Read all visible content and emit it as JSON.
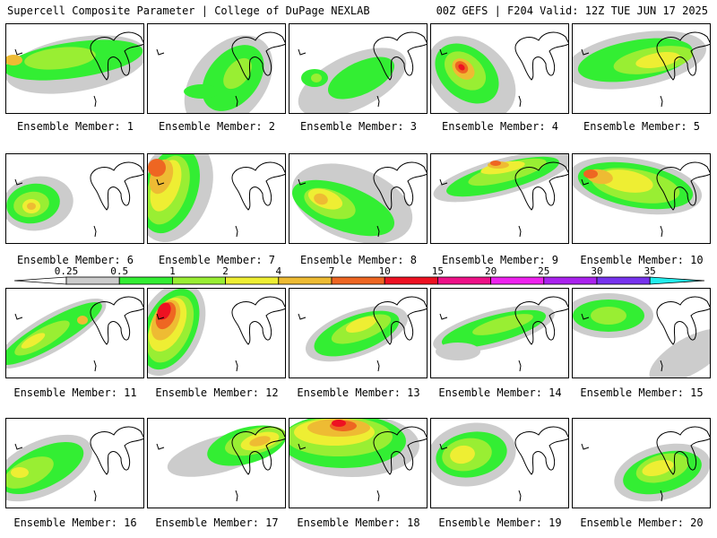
{
  "header": {
    "left": "Supercell Composite Parameter | College of DuPage NEXLAB",
    "right": "00Z GEFS | F204 Valid: 12Z TUE JUN 17 2025"
  },
  "legend": {
    "thresholds": [
      "0.25",
      "0.5",
      "1",
      "2",
      "4",
      "7",
      "10",
      "15",
      "20",
      "25",
      "30",
      "35"
    ],
    "colors": [
      "#cccccc",
      "#33ee33",
      "#99ee33",
      "#eeee33",
      "#eebb33",
      "#ee6622",
      "#ee1122",
      "#ee1188",
      "#ee22ee",
      "#aa22ee",
      "#7733ee",
      "#aa66ee",
      "#22eeee"
    ]
  },
  "members": [
    {
      "label": "Ensemble Member: 1"
    },
    {
      "label": "Ensemble Member: 2"
    },
    {
      "label": "Ensemble Member: 3"
    },
    {
      "label": "Ensemble Member: 4"
    },
    {
      "label": "Ensemble Member: 5"
    },
    {
      "label": "Ensemble Member: 6"
    },
    {
      "label": "Ensemble Member: 7"
    },
    {
      "label": "Ensemble Member: 8"
    },
    {
      "label": "Ensemble Member: 9"
    },
    {
      "label": "Ensemble Member: 10"
    },
    {
      "label": "Ensemble Member: 11"
    },
    {
      "label": "Ensemble Member: 12"
    },
    {
      "label": "Ensemble Member: 13"
    },
    {
      "label": "Ensemble Member: 14"
    },
    {
      "label": "Ensemble Member: 15"
    },
    {
      "label": "Ensemble Member: 16"
    },
    {
      "label": "Ensemble Member: 17"
    },
    {
      "label": "Ensemble Member: 18"
    },
    {
      "label": "Ensemble Member: 19"
    },
    {
      "label": "Ensemble Member: 20"
    }
  ]
}
